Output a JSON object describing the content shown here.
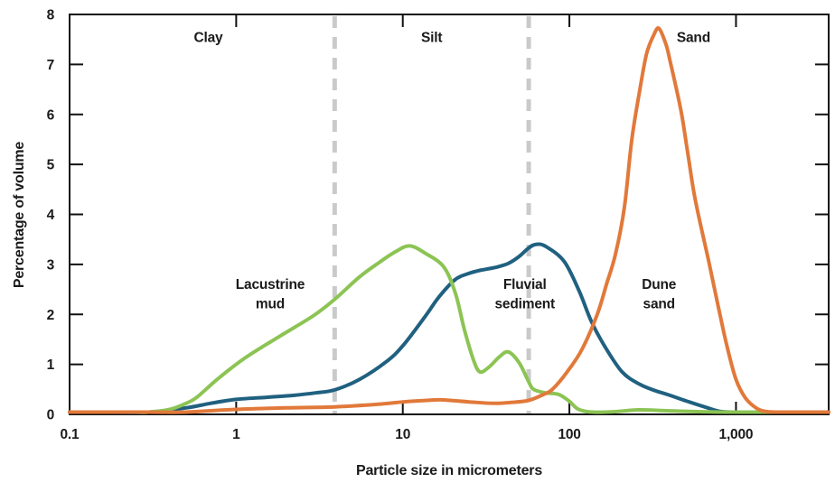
{
  "chart_data": {
    "type": "line",
    "title": "",
    "xlabel": "Particle size in micrometers",
    "ylabel": "Percentage of volume",
    "xscale": "log",
    "xlim": [
      0.1,
      3600
    ],
    "ylim": [
      0,
      8
    ],
    "grid": false,
    "legend_position": "inline-labels",
    "x_ticks": [
      {
        "value": 0.1,
        "label": "0.1"
      },
      {
        "value": 1,
        "label": "1"
      },
      {
        "value": 10,
        "label": "10"
      },
      {
        "value": 100,
        "label": "100"
      },
      {
        "value": 1000,
        "label": "1,000"
      }
    ],
    "y_ticks": [
      0,
      1,
      2,
      3,
      4,
      5,
      6,
      7,
      8
    ],
    "boundary_lines": [
      {
        "name": "clay-silt-boundary",
        "value_um": 3.9
      },
      {
        "name": "silt-sand-boundary",
        "value_um": 57
      }
    ],
    "boundary_color": "#c9cacb",
    "size_class_labels": [
      {
        "text": "Clay",
        "x_um": 0.68,
        "y_val": 7.45
      },
      {
        "text": "Silt",
        "x_um": 14.9,
        "y_val": 7.45
      },
      {
        "text": "Sand",
        "x_um": 556,
        "y_val": 7.45
      }
    ],
    "series": [
      {
        "name": "Fluvial sediment",
        "label_lines": [
          "Fluvial",
          "sediment"
        ],
        "label_x_um": 54,
        "label_y_val": 2.33,
        "color": "#206080",
        "points": [
          [
            0.1,
            0
          ],
          [
            0.18,
            0
          ],
          [
            0.3,
            0.04
          ],
          [
            0.5,
            0.13
          ],
          [
            0.7,
            0.22
          ],
          [
            1,
            0.3
          ],
          [
            1.5,
            0.34
          ],
          [
            2.2,
            0.38
          ],
          [
            3,
            0.43
          ],
          [
            3.9,
            0.49
          ],
          [
            5.5,
            0.7
          ],
          [
            8,
            1.06
          ],
          [
            10,
            1.37
          ],
          [
            13.7,
            1.97
          ],
          [
            16.5,
            2.35
          ],
          [
            20.7,
            2.7
          ],
          [
            25,
            2.82
          ],
          [
            29,
            2.88
          ],
          [
            36,
            2.94
          ],
          [
            43,
            3.02
          ],
          [
            50,
            3.16
          ],
          [
            57,
            3.33
          ],
          [
            63,
            3.4
          ],
          [
            72,
            3.36
          ],
          [
            93,
            3.06
          ],
          [
            115,
            2.45
          ],
          [
            135,
            1.87
          ],
          [
            161,
            1.39
          ],
          [
            207,
            0.85
          ],
          [
            265,
            0.6
          ],
          [
            330,
            0.47
          ],
          [
            386,
            0.4
          ],
          [
            500,
            0.27
          ],
          [
            660,
            0.14
          ],
          [
            800,
            0.06
          ],
          [
            1000,
            0.02
          ],
          [
            1400,
            0.01
          ],
          [
            3600,
            0.01
          ]
        ]
      },
      {
        "name": "Lacustrine mud",
        "label_lines": [
          "Lacustrine",
          "mud"
        ],
        "label_x_um": 1.6,
        "label_y_val": 2.33,
        "color": "#8cc454",
        "points": [
          [
            0.1,
            0
          ],
          [
            0.2,
            0
          ],
          [
            0.25,
            0.01
          ],
          [
            0.3,
            0.03
          ],
          [
            0.4,
            0.1
          ],
          [
            0.5,
            0.22
          ],
          [
            0.58,
            0.34
          ],
          [
            0.77,
            0.7
          ],
          [
            1.12,
            1.12
          ],
          [
            1.8,
            1.55
          ],
          [
            2.9,
            1.97
          ],
          [
            3.9,
            2.3
          ],
          [
            5.5,
            2.75
          ],
          [
            7.3,
            3.05
          ],
          [
            9,
            3.25
          ],
          [
            11,
            3.37
          ],
          [
            13.7,
            3.22
          ],
          [
            17.6,
            2.95
          ],
          [
            20.7,
            2.42
          ],
          [
            23.4,
            1.7
          ],
          [
            26.5,
            1.1
          ],
          [
            29,
            0.85
          ],
          [
            33,
            0.95
          ],
          [
            38,
            1.15
          ],
          [
            43,
            1.25
          ],
          [
            50,
            1.03
          ],
          [
            57,
            0.65
          ],
          [
            61,
            0.5
          ],
          [
            72,
            0.43
          ],
          [
            86,
            0.4
          ],
          [
            100,
            0.26
          ],
          [
            112,
            0.11
          ],
          [
            131,
            0.05
          ],
          [
            180,
            0.05
          ],
          [
            260,
            0.09
          ],
          [
            400,
            0.07
          ],
          [
            700,
            0.05
          ],
          [
            1200,
            0.04
          ],
          [
            2000,
            0.04
          ],
          [
            3600,
            0.03
          ]
        ]
      },
      {
        "name": "Dune sand",
        "label_lines": [
          "Dune",
          "sand"
        ],
        "label_x_um": 345,
        "label_y_val": 2.33,
        "color": "#e1793a",
        "points": [
          [
            0.1,
            0
          ],
          [
            0.3,
            0.01
          ],
          [
            0.5,
            0.03
          ],
          [
            1,
            0.1
          ],
          [
            2,
            0.13
          ],
          [
            3.9,
            0.15
          ],
          [
            7,
            0.2
          ],
          [
            10,
            0.25
          ],
          [
            14,
            0.28
          ],
          [
            17,
            0.29
          ],
          [
            25,
            0.25
          ],
          [
            35,
            0.22
          ],
          [
            45,
            0.24
          ],
          [
            57,
            0.28
          ],
          [
            70,
            0.4
          ],
          [
            79,
            0.5
          ],
          [
            97,
            0.85
          ],
          [
            119,
            1.3
          ],
          [
            147,
            2.0
          ],
          [
            167,
            2.6
          ],
          [
            189,
            3.2
          ],
          [
            214,
            4.15
          ],
          [
            237,
            5.5
          ],
          [
            265,
            6.5
          ],
          [
            290,
            7.2
          ],
          [
            320,
            7.58
          ],
          [
            345,
            7.72
          ],
          [
            380,
            7.4
          ],
          [
            400,
            7.1
          ],
          [
            466,
            6.1
          ],
          [
            515,
            5.2
          ],
          [
            569,
            4.3
          ],
          [
            687,
            3.05
          ],
          [
            778,
            2.2
          ],
          [
            882,
            1.37
          ],
          [
            1000,
            0.7
          ],
          [
            1133,
            0.34
          ],
          [
            1318,
            0.13
          ],
          [
            1500,
            0.06
          ],
          [
            1800,
            0.03
          ],
          [
            2500,
            0.02
          ],
          [
            3600,
            0.02
          ]
        ]
      }
    ],
    "axis_color": "#111111",
    "text_color": "#1a1a1a"
  }
}
